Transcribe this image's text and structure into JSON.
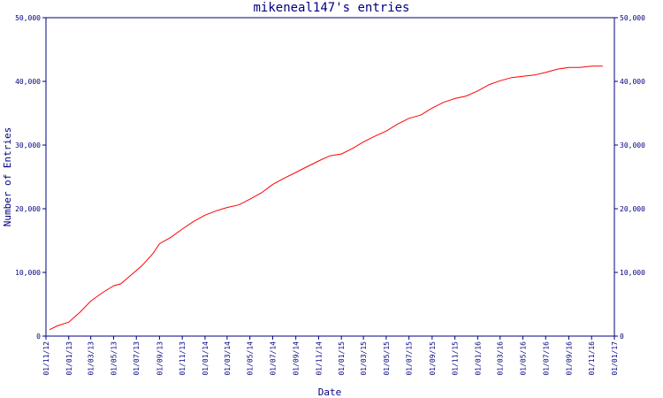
{
  "chart_data": {
    "type": "line",
    "title": "mikeneal147's entries",
    "xlabel": "Date",
    "ylabel": "Number of Entries",
    "xlim": [
      "2012-11-01",
      "2017-01-01"
    ],
    "ylim": [
      0,
      50000
    ],
    "x_ticks": [
      "01/11/12",
      "01/01/13",
      "01/03/13",
      "01/05/13",
      "01/07/13",
      "01/09/13",
      "01/11/13",
      "01/01/14",
      "01/03/14",
      "01/05/14",
      "01/07/14",
      "01/09/14",
      "01/11/14",
      "01/01/15",
      "01/03/15",
      "01/05/15",
      "01/07/15",
      "01/09/15",
      "01/11/15",
      "01/01/16",
      "01/03/16",
      "01/05/16",
      "01/07/16",
      "01/09/16",
      "01/11/16",
      "01/01/17"
    ],
    "y_ticks": [
      "0",
      "10,000",
      "20,000",
      "30,000",
      "40,000",
      "50,000"
    ],
    "y_tick_values": [
      0,
      10000,
      20000,
      30000,
      40000,
      50000
    ],
    "line_color": "#ff0000",
    "axis_color": "#000080",
    "series": [
      {
        "x": [
          "2012-11-10",
          "2012-12-01",
          "2013-01-01",
          "2013-02-01",
          "2013-03-01",
          "2013-04-01",
          "2013-05-01",
          "2013-05-20",
          "2013-06-15",
          "2013-07-15",
          "2013-08-15",
          "2013-09-01",
          "2013-10-01",
          "2013-11-01",
          "2013-12-01",
          "2014-01-01",
          "2014-02-01",
          "2014-03-01",
          "2014-04-01",
          "2014-05-01",
          "2014-06-01",
          "2014-07-01",
          "2014-08-01",
          "2014-09-01",
          "2014-10-01",
          "2014-11-01",
          "2014-12-01",
          "2015-01-01",
          "2015-02-01",
          "2015-03-01",
          "2015-04-01",
          "2015-05-01",
          "2015-06-01",
          "2015-07-01",
          "2015-08-01",
          "2015-09-01",
          "2015-10-01",
          "2015-11-01",
          "2015-12-01",
          "2016-01-01",
          "2016-02-01",
          "2016-03-01",
          "2016-04-01",
          "2016-05-01",
          "2016-06-01",
          "2016-07-01",
          "2016-08-01",
          "2016-09-01",
          "2016-10-01",
          "2016-11-01",
          "2016-12-01"
        ],
        "y": [
          1000,
          1600,
          2200,
          3800,
          5500,
          6800,
          7900,
          8200,
          9500,
          11000,
          13000,
          14500,
          15500,
          16800,
          18000,
          19000,
          19700,
          20200,
          20600,
          21500,
          22500,
          23800,
          24800,
          25700,
          26600,
          27500,
          28300,
          28600,
          29500,
          30500,
          31400,
          32200,
          33300,
          34200,
          34700,
          35800,
          36700,
          37300,
          37700,
          38500,
          39500,
          40100,
          40600,
          40800,
          41000,
          41400,
          41900,
          42200,
          42200,
          42400,
          42400
        ]
      }
    ]
  }
}
